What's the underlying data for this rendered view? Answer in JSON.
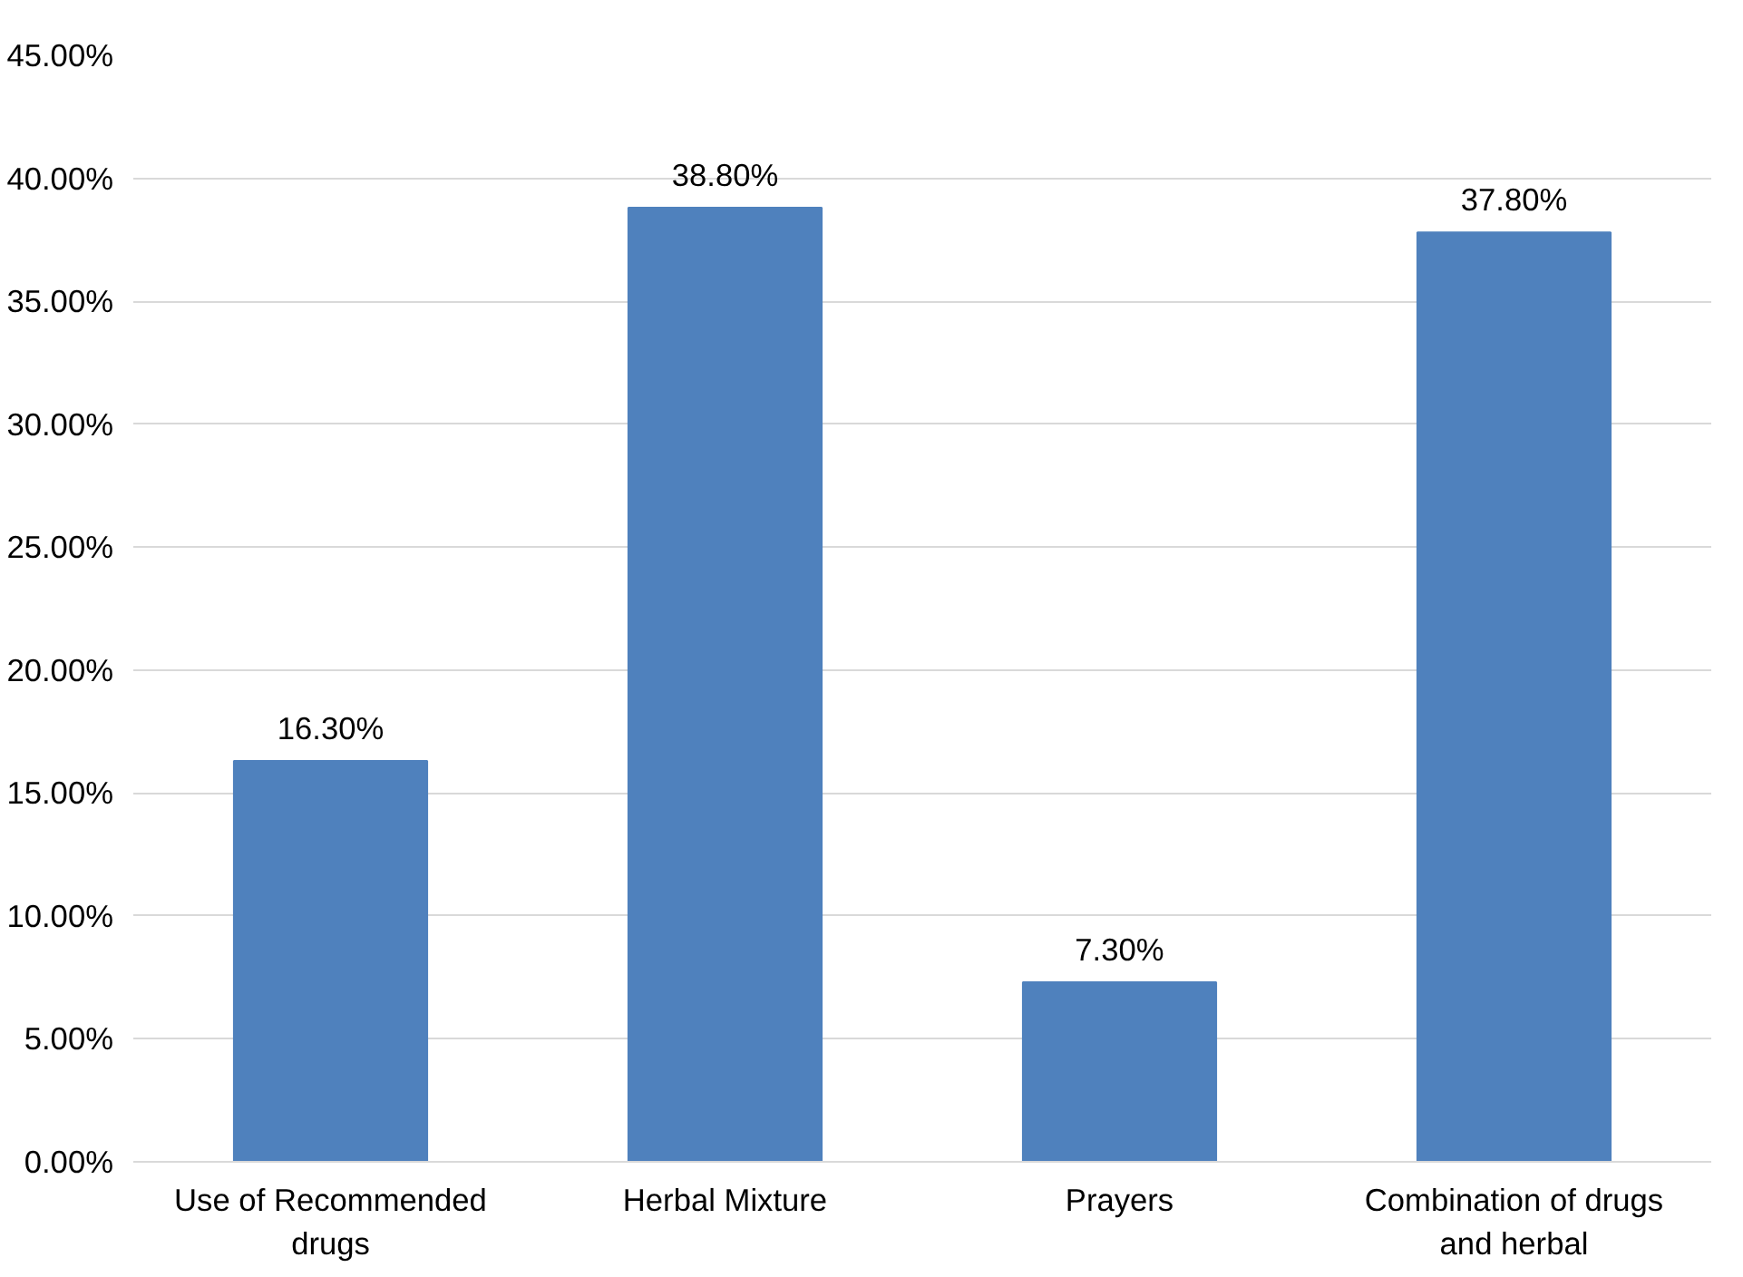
{
  "chart_data": {
    "type": "bar",
    "categories": [
      "Use of Recommended drugs",
      "Herbal Mixture",
      "Prayers",
      "Combination of drugs and herbal"
    ],
    "values": [
      16.3,
      38.8,
      7.3,
      37.8
    ],
    "color": "#4f81bd",
    "value_labels": [
      "16.30%",
      "38.80%",
      "7.30%",
      "37.80%"
    ],
    "ylim": [
      0,
      45
    ],
    "yticks": [
      {
        "value": 0,
        "label": "0.00%"
      },
      {
        "value": 5,
        "label": "5.00%"
      },
      {
        "value": 10,
        "label": "10.00%"
      },
      {
        "value": 15,
        "label": "15.00%"
      },
      {
        "value": 20,
        "label": "20.00%"
      },
      {
        "value": 25,
        "label": "25.00%"
      },
      {
        "value": 30,
        "label": "30.00%"
      },
      {
        "value": 35,
        "label": "35.00%"
      },
      {
        "value": 40,
        "label": "40.00%"
      },
      {
        "value": 45,
        "label": "45.00%"
      }
    ],
    "grid": "y"
  }
}
